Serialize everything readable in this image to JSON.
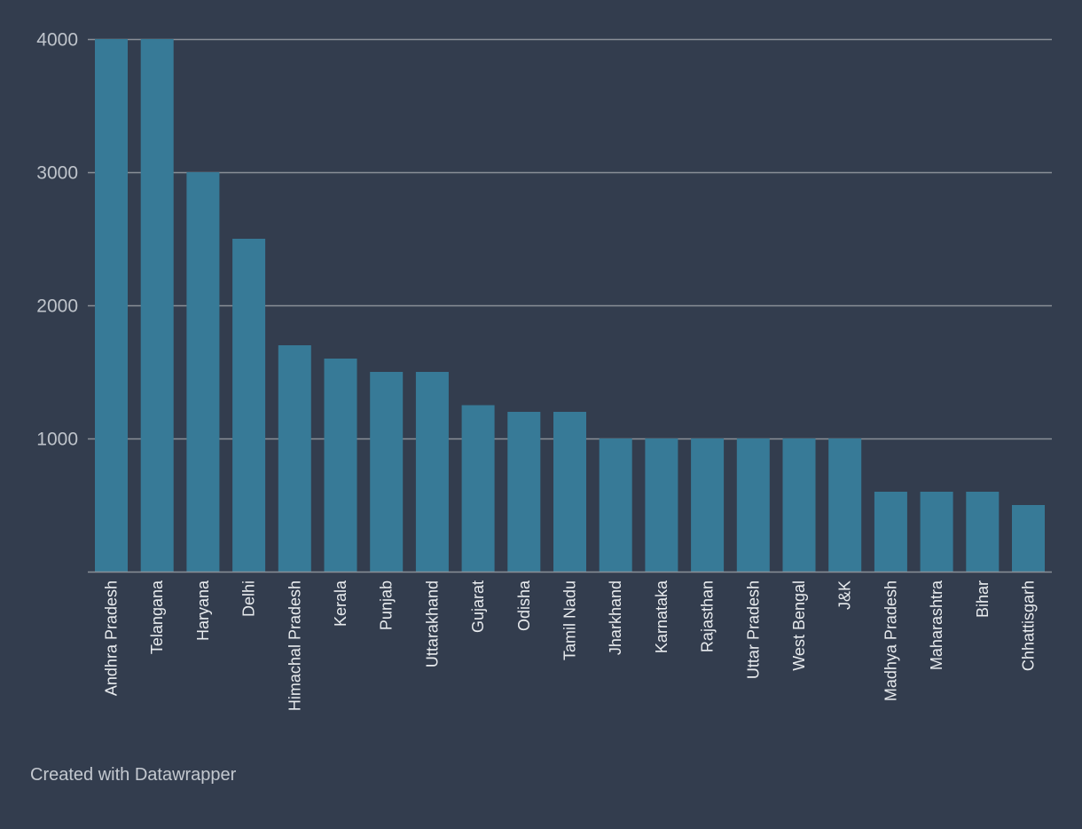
{
  "chart_data": {
    "type": "bar",
    "title": "",
    "xlabel": "",
    "ylabel": "",
    "ylim": [
      0,
      4000
    ],
    "yticks": [
      1000,
      2000,
      3000,
      4000
    ],
    "grid": true,
    "categories": [
      "Andhra Pradesh",
      "Telangana",
      "Haryana",
      "Delhi",
      "Himachal Pradesh",
      "Kerala",
      "Punjab",
      "Uttarakhand",
      "Gujarat",
      "Odisha",
      "Tamil Nadu",
      "Jharkhand",
      "Karnataka",
      "Rajasthan",
      "Uttar Pradesh",
      "West Bengal",
      "J&K",
      "Madhya Pradesh",
      "Maharashtra",
      "Bihar",
      "Chhattisgarh"
    ],
    "values": [
      4000,
      4000,
      3000,
      2500,
      1700,
      1600,
      1500,
      1500,
      1250,
      1200,
      1200,
      1000,
      1000,
      1000,
      1000,
      1000,
      1000,
      600,
      600,
      600,
      500
    ],
    "colors": {
      "bar": "#377a97",
      "background": "#333d4e",
      "grid": "#8a8f97",
      "axis_text": "#bfc4cb",
      "category_text": "#e8ebee"
    }
  },
  "footer": {
    "credit": "Created with Datawrapper"
  }
}
